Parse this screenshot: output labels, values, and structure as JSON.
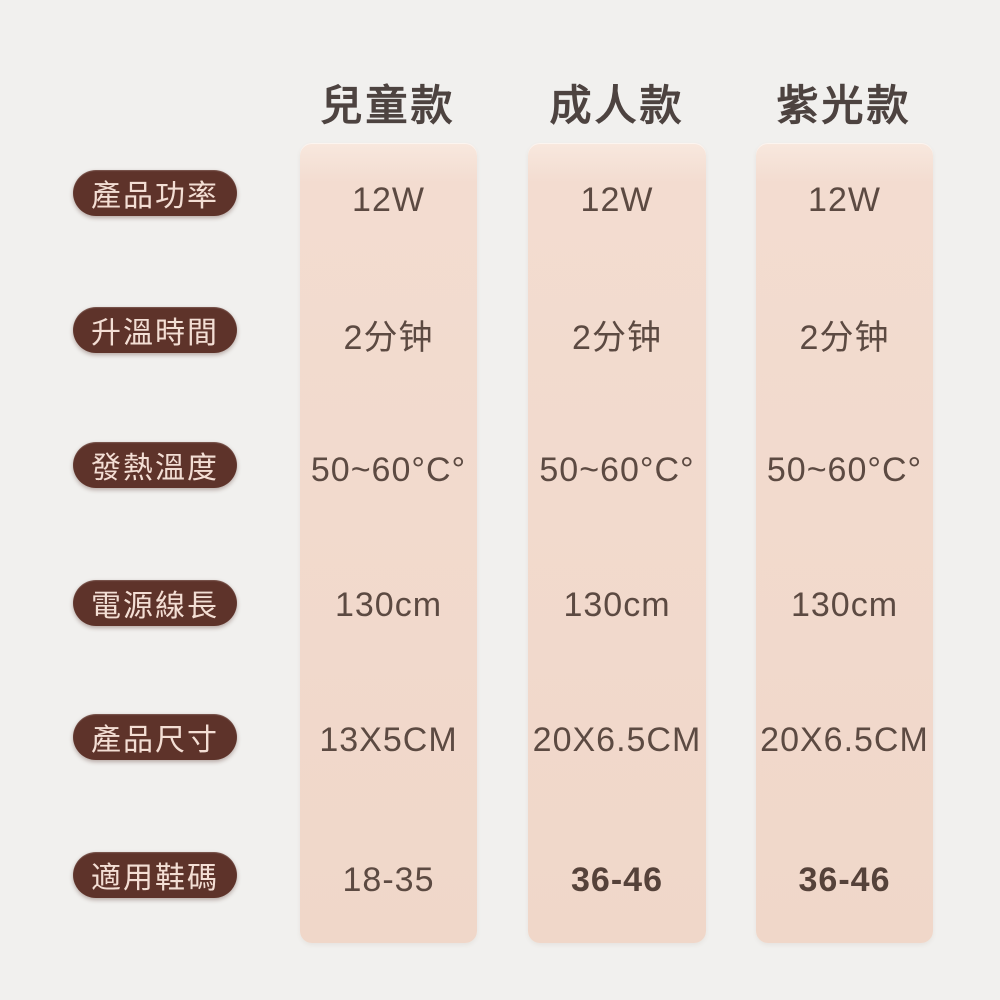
{
  "colors": {
    "page_bg": "#f1f0ee",
    "panel_bg": "#f2dbce",
    "pill_bg": "#5e332a",
    "pill_text": "#f3ded4",
    "header_text": "#4d4340",
    "value_text": "#5c4a42"
  },
  "chart_data": {
    "type": "table",
    "title": "",
    "column_headers": [
      "兒童款",
      "成人款",
      "紫光款"
    ],
    "row_headers": [
      "產品功率",
      "升溫時間",
      "發熱溫度",
      "電源線長",
      "產品尺寸",
      "適用鞋碼"
    ],
    "columns": [
      {
        "name": "兒童款",
        "values": [
          "12W",
          "2分钟",
          "50~60°C°",
          "130cm",
          "13X5CM",
          "18-35"
        ]
      },
      {
        "name": "成人款",
        "values": [
          "12W",
          "2分钟",
          "50~60°C°",
          "130cm",
          "20X6.5CM",
          "36-46"
        ]
      },
      {
        "name": "紫光款",
        "values": [
          "12W",
          "2分钟",
          "50~60°C°",
          "130cm",
          "20X6.5CM",
          "36-46"
        ]
      }
    ],
    "layout": {
      "legend": "none",
      "grid": "off",
      "column_count": 3,
      "row_count": 6
    }
  }
}
